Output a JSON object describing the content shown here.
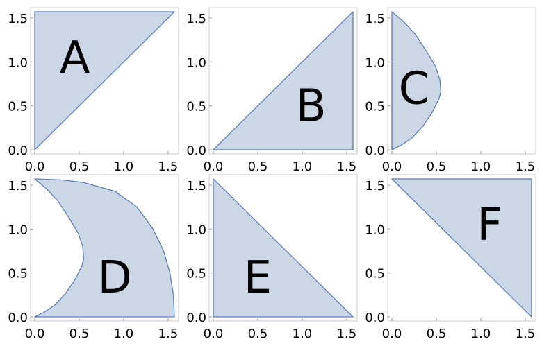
{
  "colors": {
    "fill": "#ccd7e6",
    "stroke": "#5b7db8",
    "frame": "#cccccc",
    "text": "#000000"
  },
  "chart_data": [
    {
      "type": "area",
      "region_label": "A",
      "xlim": [
        0,
        1.5708
      ],
      "ylim": [
        0,
        1.5708
      ],
      "xticks": [
        "0.0",
        "0.5",
        "1.0",
        "1.5"
      ],
      "yticks": [
        "0.0",
        "0.5",
        "1.0",
        "1.5"
      ],
      "boundary": [
        [
          0,
          0
        ],
        [
          0,
          1.5708
        ],
        [
          1.5708,
          1.5708
        ]
      ],
      "label_pos": [
        0.45,
        1.05
      ]
    },
    {
      "type": "area",
      "region_label": "B",
      "xlim": [
        0,
        1.5708
      ],
      "ylim": [
        0,
        1.5708
      ],
      "xticks": [
        "0.0",
        "0.5",
        "1.0",
        "1.5"
      ],
      "yticks": [
        "0.0",
        "0.5",
        "1.0",
        "1.5"
      ],
      "boundary": [
        [
          0,
          0
        ],
        [
          1.5708,
          0
        ],
        [
          1.5708,
          1.5708
        ]
      ],
      "label_pos": [
        1.1,
        0.5
      ]
    },
    {
      "type": "area",
      "region_label": "C",
      "xlim": [
        0,
        1.5708
      ],
      "ylim": [
        0,
        1.5708
      ],
      "xticks": [
        "0.0",
        "0.5",
        "1.0",
        "1.5"
      ],
      "yticks": [
        "0.0",
        "0.5",
        "1.0",
        "1.5"
      ],
      "boundary": [
        [
          0,
          0
        ],
        [
          0.1,
          0.05
        ],
        [
          0.22,
          0.13
        ],
        [
          0.35,
          0.27
        ],
        [
          0.45,
          0.42
        ],
        [
          0.53,
          0.58
        ],
        [
          0.55,
          0.66
        ],
        [
          0.54,
          0.8
        ],
        [
          0.49,
          0.95
        ],
        [
          0.39,
          1.12
        ],
        [
          0.26,
          1.32
        ],
        [
          0.13,
          1.46
        ],
        [
          0,
          1.5708
        ]
      ],
      "label_pos": [
        0.25,
        0.7
      ]
    },
    {
      "type": "area",
      "region_label": "D",
      "xlim": [
        0,
        1.5708
      ],
      "ylim": [
        0,
        1.5708
      ],
      "xticks": [
        "0.0",
        "0.5",
        "1.0",
        "1.5"
      ],
      "yticks": [
        "0.0",
        "0.5",
        "1.0",
        "1.5"
      ],
      "boundary": [
        [
          0,
          0
        ],
        [
          1.5708,
          0
        ],
        [
          1.56,
          0.25
        ],
        [
          1.52,
          0.5
        ],
        [
          1.45,
          0.75
        ],
        [
          1.33,
          1.0
        ],
        [
          1.15,
          1.25
        ],
        [
          0.9,
          1.43
        ],
        [
          0.55,
          1.53
        ],
        [
          0.3,
          1.56
        ],
        [
          0,
          1.5708
        ],
        [
          0.13,
          1.46
        ],
        [
          0.26,
          1.32
        ],
        [
          0.39,
          1.12
        ],
        [
          0.49,
          0.95
        ],
        [
          0.54,
          0.8
        ],
        [
          0.55,
          0.66
        ],
        [
          0.53,
          0.58
        ],
        [
          0.45,
          0.42
        ],
        [
          0.35,
          0.27
        ],
        [
          0.22,
          0.13
        ],
        [
          0.1,
          0.05
        ]
      ],
      "label_pos": [
        0.9,
        0.45
      ]
    },
    {
      "type": "area",
      "region_label": "E",
      "xlim": [
        0,
        1.5708
      ],
      "ylim": [
        0,
        1.5708
      ],
      "xticks": [
        "0.0",
        "0.5",
        "1.0",
        "1.5"
      ],
      "yticks": [
        "0.0",
        "0.5",
        "1.0",
        "1.5"
      ],
      "boundary": [
        [
          0,
          0
        ],
        [
          1.5708,
          0
        ],
        [
          0,
          1.5708
        ]
      ],
      "label_pos": [
        0.5,
        0.45
      ]
    },
    {
      "type": "area",
      "region_label": "F",
      "xlim": [
        0,
        1.5708
      ],
      "ylim": [
        0,
        1.5708
      ],
      "xticks": [
        "0.0",
        "0.5",
        "1.0",
        "1.5"
      ],
      "yticks": [
        "0.0",
        "0.5",
        "1.0",
        "1.5"
      ],
      "boundary": [
        [
          0,
          1.5708
        ],
        [
          1.5708,
          1.5708
        ],
        [
          1.5708,
          0
        ]
      ],
      "label_pos": [
        1.1,
        1.05
      ]
    }
  ]
}
